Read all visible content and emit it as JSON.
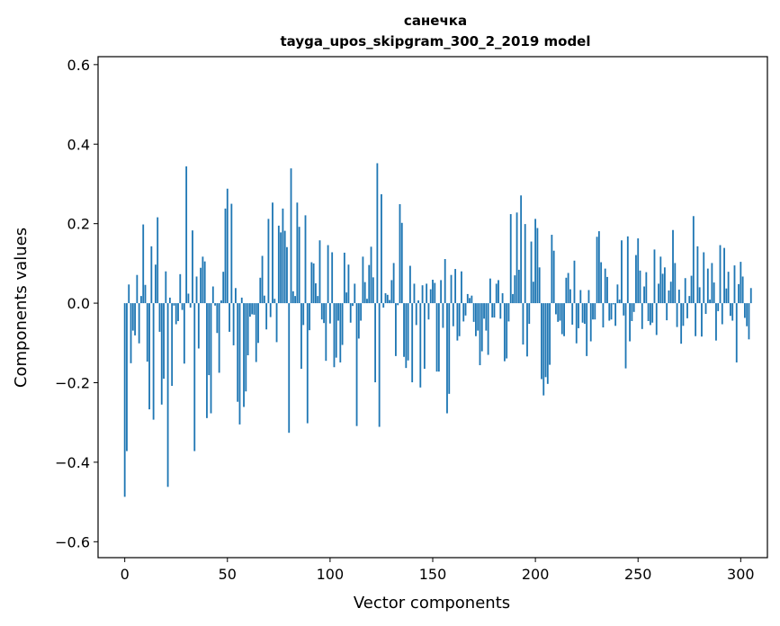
{
  "chart_data": {
    "type": "bar",
    "title_line1": "санечка",
    "title_line2": "tayga_upos_skipgram_300_2_2019 model",
    "xlabel": "Vector components",
    "ylabel": "Components values",
    "xlim": [
      -13,
      313
    ],
    "ylim": [
      -0.64,
      0.62
    ],
    "xticks": [
      0,
      50,
      100,
      150,
      200,
      250,
      300
    ],
    "xtick_labels": [
      "0",
      "50",
      "100",
      "150",
      "200",
      "250",
      "300"
    ],
    "yticks": [
      -0.6,
      -0.4,
      -0.2,
      0.0,
      0.2,
      0.4,
      0.6
    ],
    "ytick_labels": [
      "−0.6",
      "−0.4",
      "−0.2",
      "0.0",
      "0.2",
      "0.4",
      "0.6"
    ],
    "bar_color": "#1f77b4",
    "grid": false,
    "values": [
      -0.487,
      -0.372,
      0.047,
      -0.151,
      -0.069,
      -0.081,
      0.071,
      -0.101,
      0.018,
      0.198,
      0.046,
      -0.147,
      -0.267,
      0.143,
      -0.293,
      0.097,
      0.216,
      -0.072,
      -0.255,
      -0.19,
      0.08,
      -0.462,
      0.014,
      -0.208,
      -0.006,
      -0.053,
      -0.045,
      0.073,
      -0.017,
      -0.152,
      0.344,
      0.024,
      -0.011,
      0.183,
      -0.372,
      0.067,
      -0.114,
      0.089,
      0.117,
      0.105,
      -0.289,
      -0.181,
      -0.277,
      0.042,
      -0.006,
      -0.075,
      -0.175,
      0.007,
      0.079,
      0.238,
      0.288,
      -0.072,
      0.25,
      -0.106,
      0.038,
      -0.248,
      -0.305,
      0.014,
      -0.261,
      -0.222,
      -0.131,
      -0.034,
      -0.028,
      -0.029,
      -0.148,
      -0.1,
      0.064,
      0.119,
      0.019,
      -0.066,
      0.212,
      -0.035,
      0.253,
      0.011,
      -0.098,
      0.195,
      0.178,
      0.238,
      0.182,
      0.141,
      -0.326,
      0.339,
      0.03,
      0.018,
      0.253,
      0.192,
      -0.165,
      -0.055,
      0.221,
      -0.302,
      -0.068,
      0.103,
      0.1,
      0.05,
      0.018,
      0.158,
      -0.041,
      -0.05,
      -0.145,
      0.146,
      -0.051,
      0.128,
      -0.161,
      -0.137,
      -0.044,
      -0.149,
      -0.105,
      0.127,
      0.027,
      0.097,
      -0.049,
      -0.007,
      0.049,
      -0.309,
      -0.089,
      -0.044,
      0.117,
      0.053,
      0.011,
      0.096,
      0.142,
      0.065,
      -0.199,
      0.352,
      -0.311,
      0.274,
      -0.011,
      0.025,
      0.021,
      0.008,
      0.058,
      0.101,
      -0.133,
      -0.005,
      0.249,
      0.202,
      -0.135,
      -0.163,
      -0.144,
      0.094,
      -0.199,
      0.049,
      -0.055,
      0.007,
      -0.212,
      0.045,
      -0.165,
      0.049,
      -0.041,
      0.035,
      0.059,
      0.051,
      -0.172,
      -0.172,
      0.058,
      -0.062,
      0.111,
      -0.277,
      -0.228,
      0.071,
      -0.058,
      0.086,
      -0.094,
      -0.083,
      0.08,
      -0.046,
      -0.031,
      0.023,
      0.013,
      0.019,
      -0.047,
      -0.083,
      -0.069,
      -0.156,
      -0.121,
      -0.039,
      -0.069,
      -0.13,
      0.062,
      -0.036,
      -0.036,
      0.049,
      0.058,
      -0.039,
      0.025,
      -0.146,
      -0.139,
      -0.046,
      0.224,
      0.023,
      0.07,
      0.228,
      0.084,
      0.271,
      -0.104,
      0.199,
      -0.134,
      -0.052,
      0.155,
      0.054,
      0.212,
      0.189,
      0.09,
      -0.191,
      -0.232,
      -0.186,
      -0.203,
      -0.155,
      0.172,
      0.132,
      -0.028,
      -0.047,
      -0.044,
      -0.078,
      -0.083,
      0.064,
      0.076,
      0.035,
      -0.054,
      0.107,
      -0.101,
      -0.063,
      0.033,
      -0.049,
      -0.052,
      -0.133,
      0.033,
      -0.096,
      -0.041,
      -0.041,
      0.167,
      0.181,
      0.103,
      -0.061,
      0.087,
      0.066,
      -0.044,
      -0.041,
      -0.003,
      -0.057,
      0.047,
      0.009,
      0.158,
      -0.031,
      -0.164,
      0.168,
      -0.096,
      -0.045,
      -0.022,
      0.121,
      0.163,
      0.082,
      -0.065,
      0.042,
      0.078,
      -0.045,
      -0.055,
      -0.049,
      0.135,
      -0.08,
      0.049,
      0.117,
      0.074,
      0.09,
      -0.043,
      0.032,
      0.054,
      0.184,
      0.101,
      -0.06,
      0.034,
      -0.102,
      -0.057,
      0.063,
      -0.038,
      0.018,
      0.069,
      0.219,
      -0.083,
      0.143,
      0.04,
      -0.084,
      0.128,
      -0.027,
      0.087,
      0.009,
      0.101,
      0.052,
      -0.094,
      -0.02,
      0.146,
      -0.053,
      0.139,
      0.037,
      0.079,
      -0.032,
      -0.044,
      0.095,
      -0.149,
      0.048,
      0.104,
      0.067,
      -0.037,
      -0.058,
      -0.091,
      0.038
    ]
  }
}
